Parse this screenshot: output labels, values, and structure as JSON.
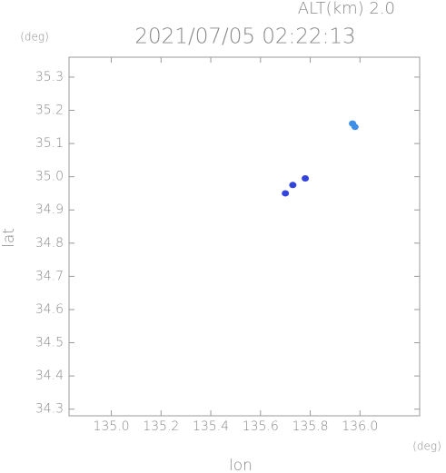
{
  "chart_data": {
    "type": "scatter",
    "title": "2021/07/05 02:22:13",
    "annotation": "ALT(km) 2.0",
    "x_label": "lon",
    "y_label": "lat",
    "x_unit": "(deg)",
    "y_unit": "(deg)",
    "xlim": [
      134.83,
      136.24
    ],
    "ylim": [
      34.28,
      35.36
    ],
    "xticks": [
      {
        "value": 135.0,
        "label": "135.0"
      },
      135.2,
      135.4,
      135.6,
      135.8,
      {
        "value": 136.0,
        "label": "136.0"
      }
    ],
    "yticks": [
      34.3,
      34.4,
      34.5,
      34.6,
      34.7,
      34.8,
      34.9,
      {
        "value": 35.0,
        "label": "35.0"
      },
      35.1,
      35.2,
      35.3
    ],
    "series": [
      {
        "color": "#3f8fe8",
        "x": [
          135.97,
          135.98
        ],
        "y": [
          35.16,
          35.15
        ]
      },
      {
        "color": "#3344dd",
        "x": [
          135.7,
          135.73,
          135.78
        ],
        "y": [
          34.95,
          34.975,
          34.995
        ]
      }
    ]
  }
}
